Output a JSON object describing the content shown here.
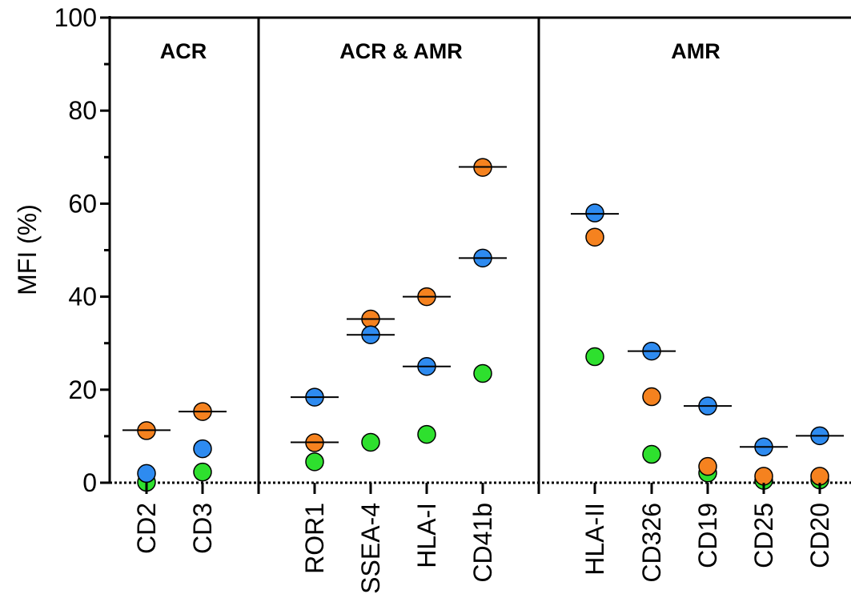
{
  "chart_data": {
    "type": "scatter",
    "ylabel": "MFI (%)",
    "ylim": [
      0,
      100
    ],
    "yticks": [
      "0",
      "20",
      "40",
      "60",
      "80",
      "100"
    ],
    "grid": false,
    "colors": {
      "orange": "#F5821F",
      "blue": "#2E8BF0",
      "green": "#2EE02E"
    },
    "panels": [
      {
        "label": "ACR",
        "categories": [
          "CD2",
          "CD3"
        ]
      },
      {
        "label": "ACR & AMR",
        "categories": [
          "ROR1",
          "SSEA-4",
          "HLA-I",
          "CD41b"
        ]
      },
      {
        "label": "AMR",
        "categories": [
          "HLA-II",
          "CD326",
          "CD19",
          "CD25",
          "CD20"
        ]
      }
    ],
    "categories": [
      "CD2",
      "CD3",
      "ROR1",
      "SSEA-4",
      "HLA-I",
      "CD41b",
      "HLA-II",
      "CD326",
      "CD19",
      "CD25",
      "CD20"
    ],
    "series": [
      {
        "color": "orange",
        "values": [
          11.2,
          15.3,
          8.6,
          35.2,
          40.0,
          67.8,
          52.8,
          18.5,
          3.5,
          1.4,
          1.4
        ]
      },
      {
        "color": "blue",
        "values": [
          2.0,
          7.3,
          18.4,
          31.8,
          25.0,
          48.3,
          58.0,
          28.3,
          16.5,
          7.7,
          10.1
        ]
      },
      {
        "color": "green",
        "values": [
          0.1,
          2.3,
          4.5,
          8.7,
          10.4,
          23.5,
          27.1,
          6.1,
          2.1,
          0.5,
          0.6
        ]
      }
    ],
    "median_lines": [
      11.3,
      15.3,
      8.7,
      35.2,
      40.0,
      67.9,
      57.8,
      28.3,
      16.5,
      7.7,
      10.1
    ],
    "median_lines_extra": [
      {
        "category": "ROR1",
        "value": 18.4
      },
      {
        "category": "SSEA-4",
        "value": 31.8
      },
      {
        "category": "HLA-I",
        "value": 25.0
      },
      {
        "category": "CD41b",
        "value": 48.3
      }
    ]
  }
}
